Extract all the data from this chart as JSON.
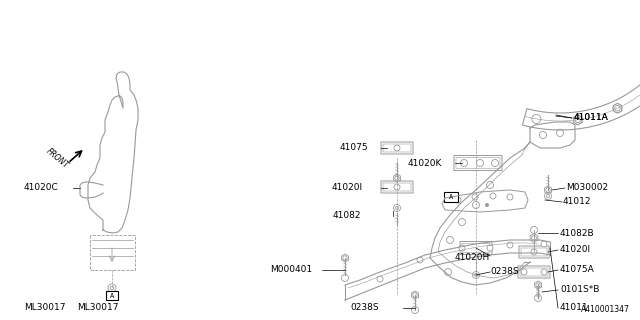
{
  "bg_color": "#ffffff",
  "line_color": "#999999",
  "text_color": "#000000",
  "diagram_id": "A410001347",
  "figsize": [
    6.4,
    3.2
  ],
  "dpi": 100,
  "xlim": [
    0,
    640
  ],
  "ylim": [
    320,
    0
  ]
}
